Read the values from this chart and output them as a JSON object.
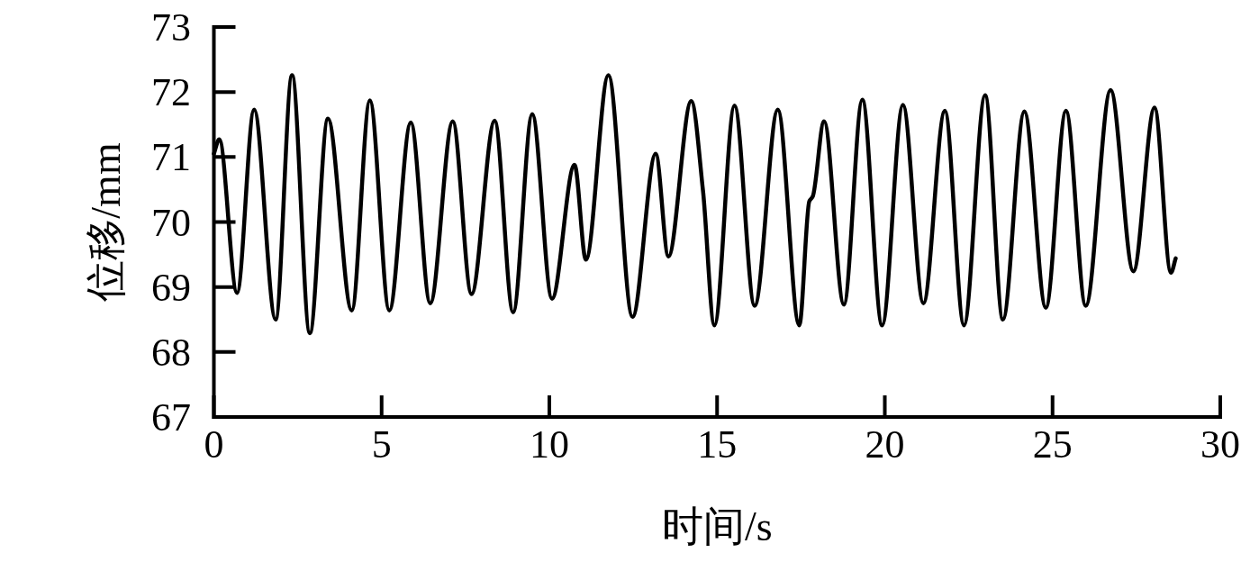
{
  "chart_data": {
    "type": "line",
    "xlabel": "时间/s",
    "ylabel": "位移/mm",
    "x": [
      0,
      0.16,
      0.69,
      1.2,
      1.84,
      2.33,
      2.86,
      3.4,
      4.11,
      4.65,
      5.23,
      5.87,
      6.45,
      7.12,
      7.68,
      8.37,
      8.92,
      9.49,
      10.08,
      10.75,
      11.09,
      11.76,
      12.48,
      13.17,
      13.55,
      14.23,
      14.58,
      14.92,
      15.52,
      16.12,
      16.81,
      17.45,
      17.75,
      17.85,
      18.19,
      18.78,
      19.33,
      19.92,
      20.54,
      21.15,
      21.79,
      22.36,
      22.99,
      23.52,
      24.16,
      24.8,
      25.4,
      25.99,
      26.73,
      27.41,
      28.04,
      28.53,
      28.67
    ],
    "values": [
      71.05,
      71.27,
      68.91,
      71.73,
      68.5,
      72.26,
      68.29,
      71.59,
      68.64,
      71.87,
      68.64,
      71.53,
      68.75,
      71.55,
      68.89,
      71.56,
      68.61,
      71.66,
      68.82,
      70.88,
      69.42,
      72.26,
      68.54,
      71.05,
      69.47,
      71.86,
      70.48,
      68.41,
      71.79,
      68.71,
      71.73,
      68.41,
      70.32,
      70.39,
      71.55,
      68.73,
      71.88,
      68.41,
      71.8,
      68.75,
      71.71,
      68.41,
      71.95,
      68.5,
      71.7,
      68.68,
      71.71,
      68.71,
      72.03,
      69.24,
      71.76,
      69.22,
      69.44
    ],
    "color": "#000000",
    "line_style": "solid",
    "xlim": [
      0,
      30
    ],
    "ylim": [
      67,
      73
    ],
    "xticks": [
      0,
      5,
      10,
      15,
      20,
      25,
      30
    ],
    "yticks": [
      67,
      68,
      69,
      70,
      71,
      72,
      73
    ]
  }
}
